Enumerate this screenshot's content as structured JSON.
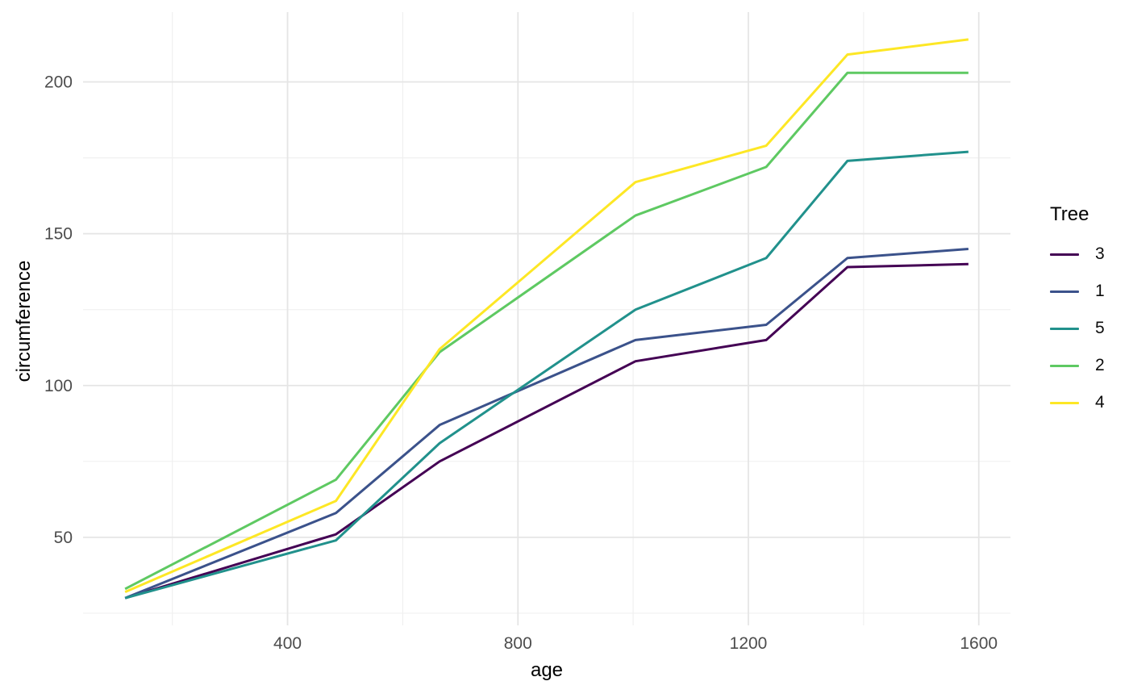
{
  "chart_data": {
    "type": "line",
    "title": "",
    "xlabel": "age",
    "ylabel": "circumference",
    "x": [
      118,
      484,
      664,
      1004,
      1231,
      1372,
      1582
    ],
    "series": [
      {
        "name": "3",
        "color": "#440154",
        "values": [
          30,
          51,
          75,
          108,
          115,
          139,
          140
        ]
      },
      {
        "name": "1",
        "color": "#3B528B",
        "values": [
          30,
          58,
          87,
          115,
          120,
          142,
          145
        ]
      },
      {
        "name": "5",
        "color": "#21918C",
        "values": [
          30,
          49,
          81,
          125,
          142,
          174,
          177
        ]
      },
      {
        "name": "2",
        "color": "#5EC962",
        "values": [
          33,
          69,
          111,
          156,
          172,
          203,
          203
        ]
      },
      {
        "name": "4",
        "color": "#FDE725",
        "values": [
          32,
          62,
          112,
          167,
          179,
          209,
          214
        ]
      }
    ],
    "legend": {
      "title": "Tree",
      "position": "right",
      "entries": [
        "3",
        "1",
        "5",
        "2",
        "4"
      ]
    },
    "axes": {
      "x_ticks": [
        400,
        800,
        1200,
        1600
      ],
      "x_minor_ticks": [
        200,
        600,
        1000,
        1400
      ],
      "y_ticks": [
        50,
        100,
        150,
        200
      ],
      "y_minor_ticks": [
        25,
        75,
        125,
        175
      ],
      "xlim": [
        45,
        1655
      ],
      "ylim": [
        21,
        223
      ]
    },
    "style": {
      "grid": "on",
      "grid_major_color": "#e5e5e5",
      "grid_minor_color": "#f0f0f0",
      "tick_label_color": "#4d4d4d",
      "axis_title_color": "#000000",
      "background": "#ffffff",
      "line_width": 3
    }
  }
}
